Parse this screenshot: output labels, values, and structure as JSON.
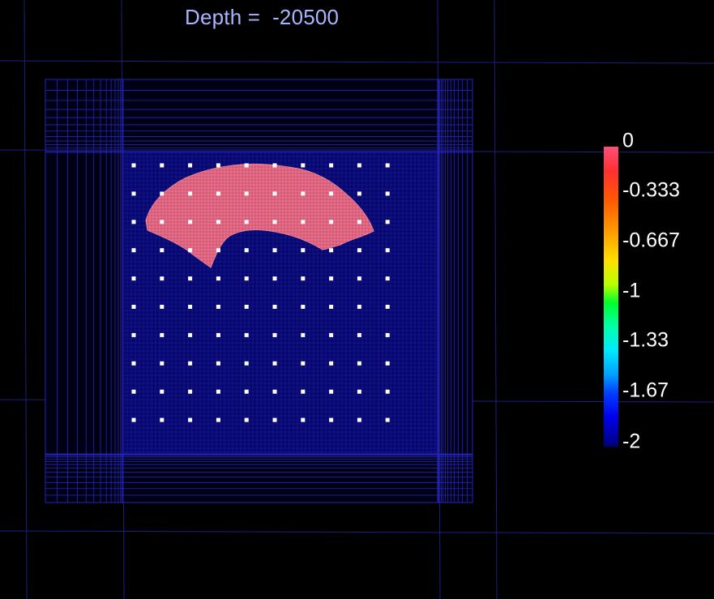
{
  "viewer": {
    "title_label": "Depth = ",
    "depth_value": "-20500",
    "background": "#000000",
    "mesh_color": "#1b1bb0",
    "body_color": "#e8708a",
    "station_color": "#ffffff"
  },
  "colorbar": {
    "min": -2,
    "max": 0,
    "tick_labels": [
      "0",
      "-0.333",
      "-0.667",
      "-1",
      "-1.33",
      "-1.67",
      "-2"
    ],
    "tick_values": [
      0,
      -0.333,
      -0.667,
      -1,
      -1.333,
      -1.667,
      -2
    ],
    "colormap": [
      "#000080",
      "#0000ff",
      "#00aaff",
      "#00ffff",
      "#00ff66",
      "#66ff00",
      "#ffff00",
      "#ff9900",
      "#ff3300",
      "#ff6688"
    ]
  },
  "stations": {
    "rows": 10,
    "cols": 10
  }
}
